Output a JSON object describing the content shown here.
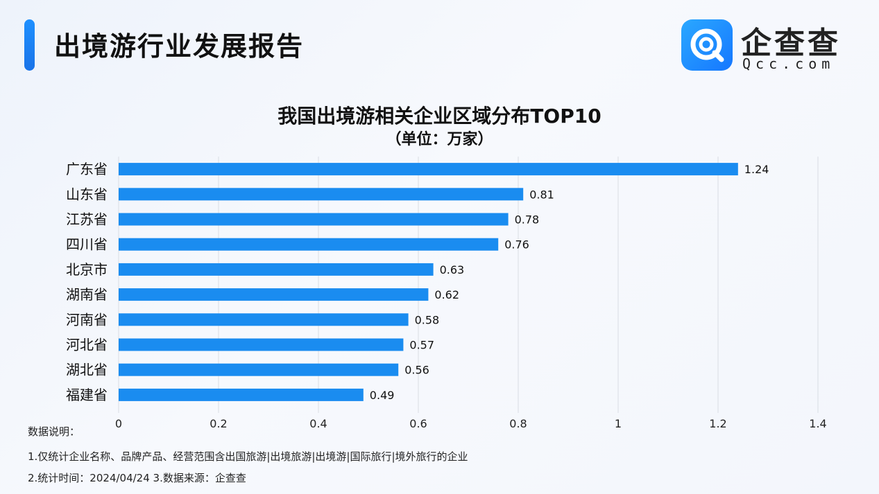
{
  "header": {
    "title": "出境游行业发展报告"
  },
  "logo": {
    "name": "企查查",
    "domain": "Qcc.com"
  },
  "chart_data": {
    "type": "bar",
    "orientation": "horizontal",
    "title": "我国出境游相关企业区域分布TOP10",
    "subtitle": "（单位：万家）",
    "categories": [
      "广东省",
      "山东省",
      "江苏省",
      "四川省",
      "北京市",
      "湖南省",
      "河南省",
      "河北省",
      "湖北省",
      "福建省"
    ],
    "values": [
      1.24,
      0.81,
      0.78,
      0.76,
      0.63,
      0.62,
      0.58,
      0.57,
      0.56,
      0.49
    ],
    "value_labels": [
      "1.24",
      "0.81",
      "0.78",
      "0.76",
      "0.63",
      "0.62",
      "0.58",
      "0.57",
      "0.56",
      "0.49"
    ],
    "x_ticks": [
      "0",
      "0.2",
      "0.4",
      "0.6",
      "0.8",
      "1",
      "1.2",
      "1.4"
    ],
    "xlim": [
      0,
      1.4
    ],
    "grid": "vertical",
    "bar_color": "#1a8cf0"
  },
  "notes": {
    "heading": "数据说明：",
    "line1": "1.仅统计企业名称、品牌产品、经营范围含出国旅游|出境旅游|出境游|国际旅行|境外旅行的企业",
    "line2": "2.统计时间：2024/04/24    3.数据来源：企查查"
  }
}
